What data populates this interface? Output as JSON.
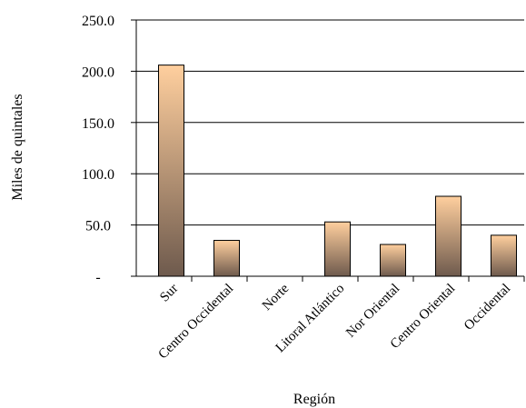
{
  "chart_data": {
    "type": "bar",
    "title": "",
    "xlabel": "Región",
    "ylabel": "Miles de quintales",
    "ylim": [
      0,
      250
    ],
    "grid": "horizontal",
    "legend": "none",
    "yticks": [
      "-",
      "50.0",
      "100.0",
      "150.0",
      "200.0",
      "250.0"
    ],
    "categories": [
      "Sur",
      "Centro Occidental",
      "Norte",
      "Litoral Atlántico",
      "Nor Oriental",
      "Centro Oriental",
      "Occidental"
    ],
    "values": [
      206,
      35,
      0,
      53,
      31,
      78,
      40
    ],
    "colors": {
      "bar_top": "#ffcf9e",
      "bar_bottom": "#6e5a4d",
      "bar_stroke": "#000000",
      "grid": "#000000"
    }
  }
}
